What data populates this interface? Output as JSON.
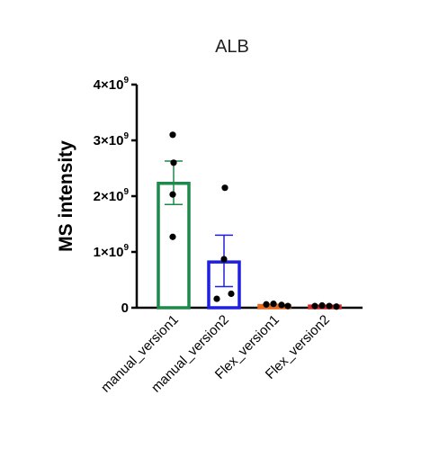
{
  "chart_data": {
    "type": "bar",
    "title": "ALB",
    "ylabel": "MS intensity",
    "xlabel": "",
    "ylim": [
      0,
      4000000000
    ],
    "yticks": [
      {
        "value": 0,
        "label": "0",
        "exp": ""
      },
      {
        "value": 1000000000,
        "label": "1×10",
        "exp": "9"
      },
      {
        "value": 2000000000,
        "label": "2×10",
        "exp": "9"
      },
      {
        "value": 3000000000,
        "label": "3×10",
        "exp": "9"
      },
      {
        "value": 4000000000,
        "label": "4×10",
        "exp": "9"
      }
    ],
    "categories": [
      "manual_version1",
      "manual_version2",
      "Flex_version1",
      "Flex_version2"
    ],
    "values": [
      2230000000,
      820000000,
      40000000,
      30000000
    ],
    "error_low": [
      1850000000,
      380000000,
      30000000,
      25000000
    ],
    "error_high": [
      2630000000,
      1300000000,
      60000000,
      40000000
    ],
    "points": [
      [
        3100000000,
        2600000000,
        2030000000,
        1270000000
      ],
      [
        2150000000,
        870000000,
        250000000,
        160000000
      ],
      [
        60000000,
        70000000,
        50000000,
        30000000
      ],
      [
        30000000,
        40000000,
        30000000,
        20000000
      ]
    ],
    "bar_colors": [
      "#1e8a4a",
      "#1f1fe0",
      "#e06a1f",
      "#d42a2a"
    ],
    "error_colors": [
      "#1e8a4a",
      "#1f1fe0",
      "#e06a1f",
      "#d42a2a"
    ],
    "point_color": "#000000",
    "grid": false,
    "legend": "none"
  }
}
